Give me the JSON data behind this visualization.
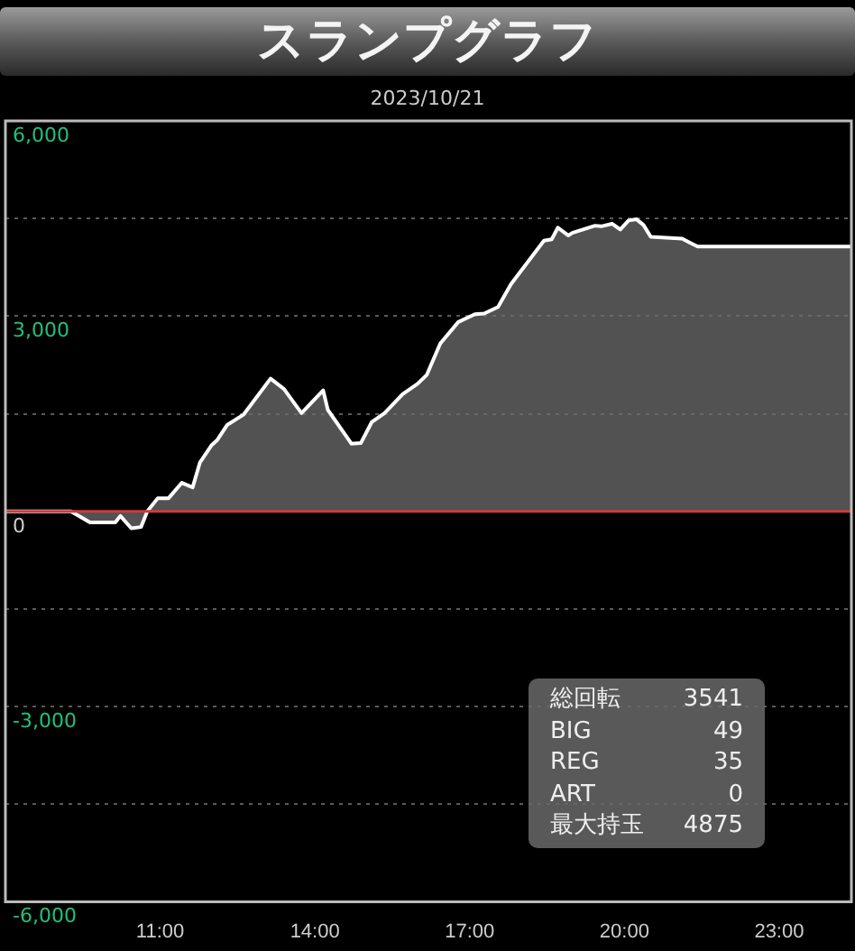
{
  "chart_data": {
    "type": "area",
    "title": "スランプグラフ",
    "subtitle": "2023/10/21",
    "x": [
      8.0,
      9.27,
      9.64,
      10.13,
      10.23,
      10.44,
      10.63,
      10.75,
      10.95,
      11.16,
      11.42,
      11.63,
      11.77,
      12.0,
      12.11,
      12.3,
      12.62,
      13.14,
      13.4,
      13.74,
      14.16,
      14.25,
      14.71,
      14.89,
      15.1,
      15.35,
      15.7,
      15.99,
      16.17,
      16.43,
      16.78,
      17.1,
      17.28,
      17.55,
      17.8,
      18.44,
      18.59,
      18.71,
      18.91,
      18.99,
      19.43,
      19.55,
      19.76,
      19.92,
      20.08,
      20.23,
      20.37,
      20.51,
      21.12,
      21.42,
      24.4
    ],
    "series": [
      {
        "color": "#ffffff",
        "values": [
          0,
          0,
          -170,
          -170,
          -70,
          -260,
          -240,
          0,
          200,
          200,
          440,
          370,
          750,
          1020,
          1100,
          1330,
          1490,
          2040,
          1880,
          1510,
          1860,
          1560,
          1040,
          1050,
          1370,
          1510,
          1800,
          1960,
          2100,
          2580,
          2910,
          3030,
          3040,
          3140,
          3490,
          4160,
          4180,
          4360,
          4240,
          4280,
          4390,
          4380,
          4420,
          4330,
          4470,
          4490,
          4400,
          4220,
          4190,
          4070,
          4070
        ]
      }
    ],
    "xlim": [
      8,
      24.4
    ],
    "xticks": [
      {
        "value": 11,
        "label": "11:00"
      },
      {
        "value": 14,
        "label": "14:00"
      },
      {
        "value": 17,
        "label": "17:00"
      },
      {
        "value": 20,
        "label": "20:00"
      },
      {
        "value": 23,
        "label": "23:00"
      }
    ],
    "ylim": [
      -6000,
      6000
    ],
    "yticks": [
      {
        "value": -6000,
        "label": "-6,000"
      },
      {
        "value": -4500,
        "label": null
      },
      {
        "value": -3000,
        "label": "-3,000"
      },
      {
        "value": -1500,
        "label": null
      },
      {
        "value": 0,
        "label": "0"
      },
      {
        "value": 1500,
        "label": null
      },
      {
        "value": 3000,
        "label": "3,000"
      },
      {
        "value": 4500,
        "label": null
      },
      {
        "value": 6000,
        "label": "6,000"
      }
    ],
    "ref_lines": [
      {
        "axis": "y",
        "value": 0,
        "color": "#d03a3a"
      }
    ],
    "annotations": [
      "総回転 3541",
      "BIG 49",
      "REG 35",
      "ART 0",
      "最大持玉 4875"
    ],
    "grid": "y",
    "legend": false,
    "marker": "none",
    "line_style": "solid"
  }
}
